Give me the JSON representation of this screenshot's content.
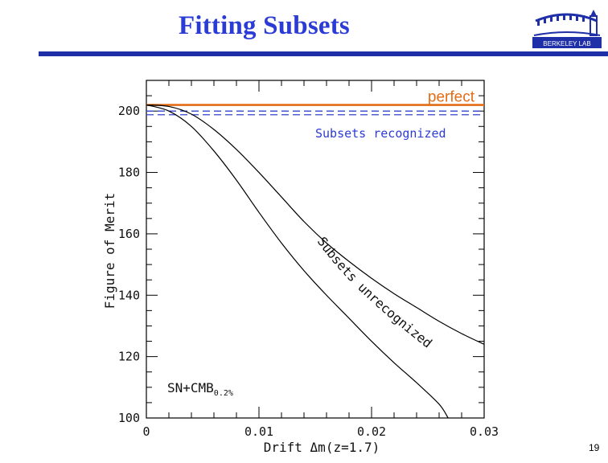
{
  "slide": {
    "title": "Fitting Subsets",
    "page_number": "19",
    "logo_text": "BERKELEY LAB"
  },
  "colors": {
    "title": "#2b3bd6",
    "rule": "#1f2fa8",
    "perfect": "#e36c16",
    "recognized": "#3344cc",
    "curve": "#000000"
  },
  "chart_data": {
    "type": "line",
    "xlabel": "Drift  Δm(z=1.7)",
    "ylabel": "Figure of Merit",
    "xlim": [
      0,
      0.03
    ],
    "ylim": [
      100,
      210
    ],
    "xticks": [
      0,
      0.01,
      0.02,
      0.03
    ],
    "xtick_labels": [
      "0",
      "0.01",
      "0.02",
      "0.03"
    ],
    "yticks": [
      100,
      120,
      140,
      160,
      180,
      200
    ],
    "ytick_labels": [
      "100",
      "120",
      "140",
      "160",
      "180",
      "200"
    ],
    "legend_text": "SN+CMB",
    "legend_subscript": "0.2%",
    "reference_lines": [
      {
        "name": "perfect",
        "y": 202,
        "style": "solid",
        "color": "#e36c16"
      },
      {
        "name": "Subsets recognized",
        "y": 200,
        "style": "dashed",
        "color": "#3344cc"
      },
      {
        "name": "",
        "y": 198.8,
        "style": "dashed",
        "color": "#3344cc"
      }
    ],
    "annotation": "Subsets unrecognized",
    "series": [
      {
        "name": "",
        "x": [
          0,
          0.002,
          0.004,
          0.006,
          0.008,
          0.01,
          0.012,
          0.014,
          0.016,
          0.018,
          0.02,
          0.022,
          0.024,
          0.026,
          0.028,
          0.03
        ],
        "y": [
          202,
          201.5,
          199,
          194,
          187.5,
          180,
          172,
          164,
          157,
          151,
          145.5,
          140.5,
          136,
          131.5,
          127.5,
          124
        ]
      },
      {
        "name": "",
        "x": [
          0,
          0.002,
          0.004,
          0.006,
          0.008,
          0.01,
          0.012,
          0.014,
          0.016,
          0.018,
          0.02,
          0.022,
          0.024,
          0.026,
          0.0268
        ],
        "y": [
          202,
          200,
          195,
          187,
          177.5,
          167,
          157,
          148,
          140,
          132.5,
          125,
          118,
          111.5,
          104.5,
          100
        ]
      }
    ]
  }
}
